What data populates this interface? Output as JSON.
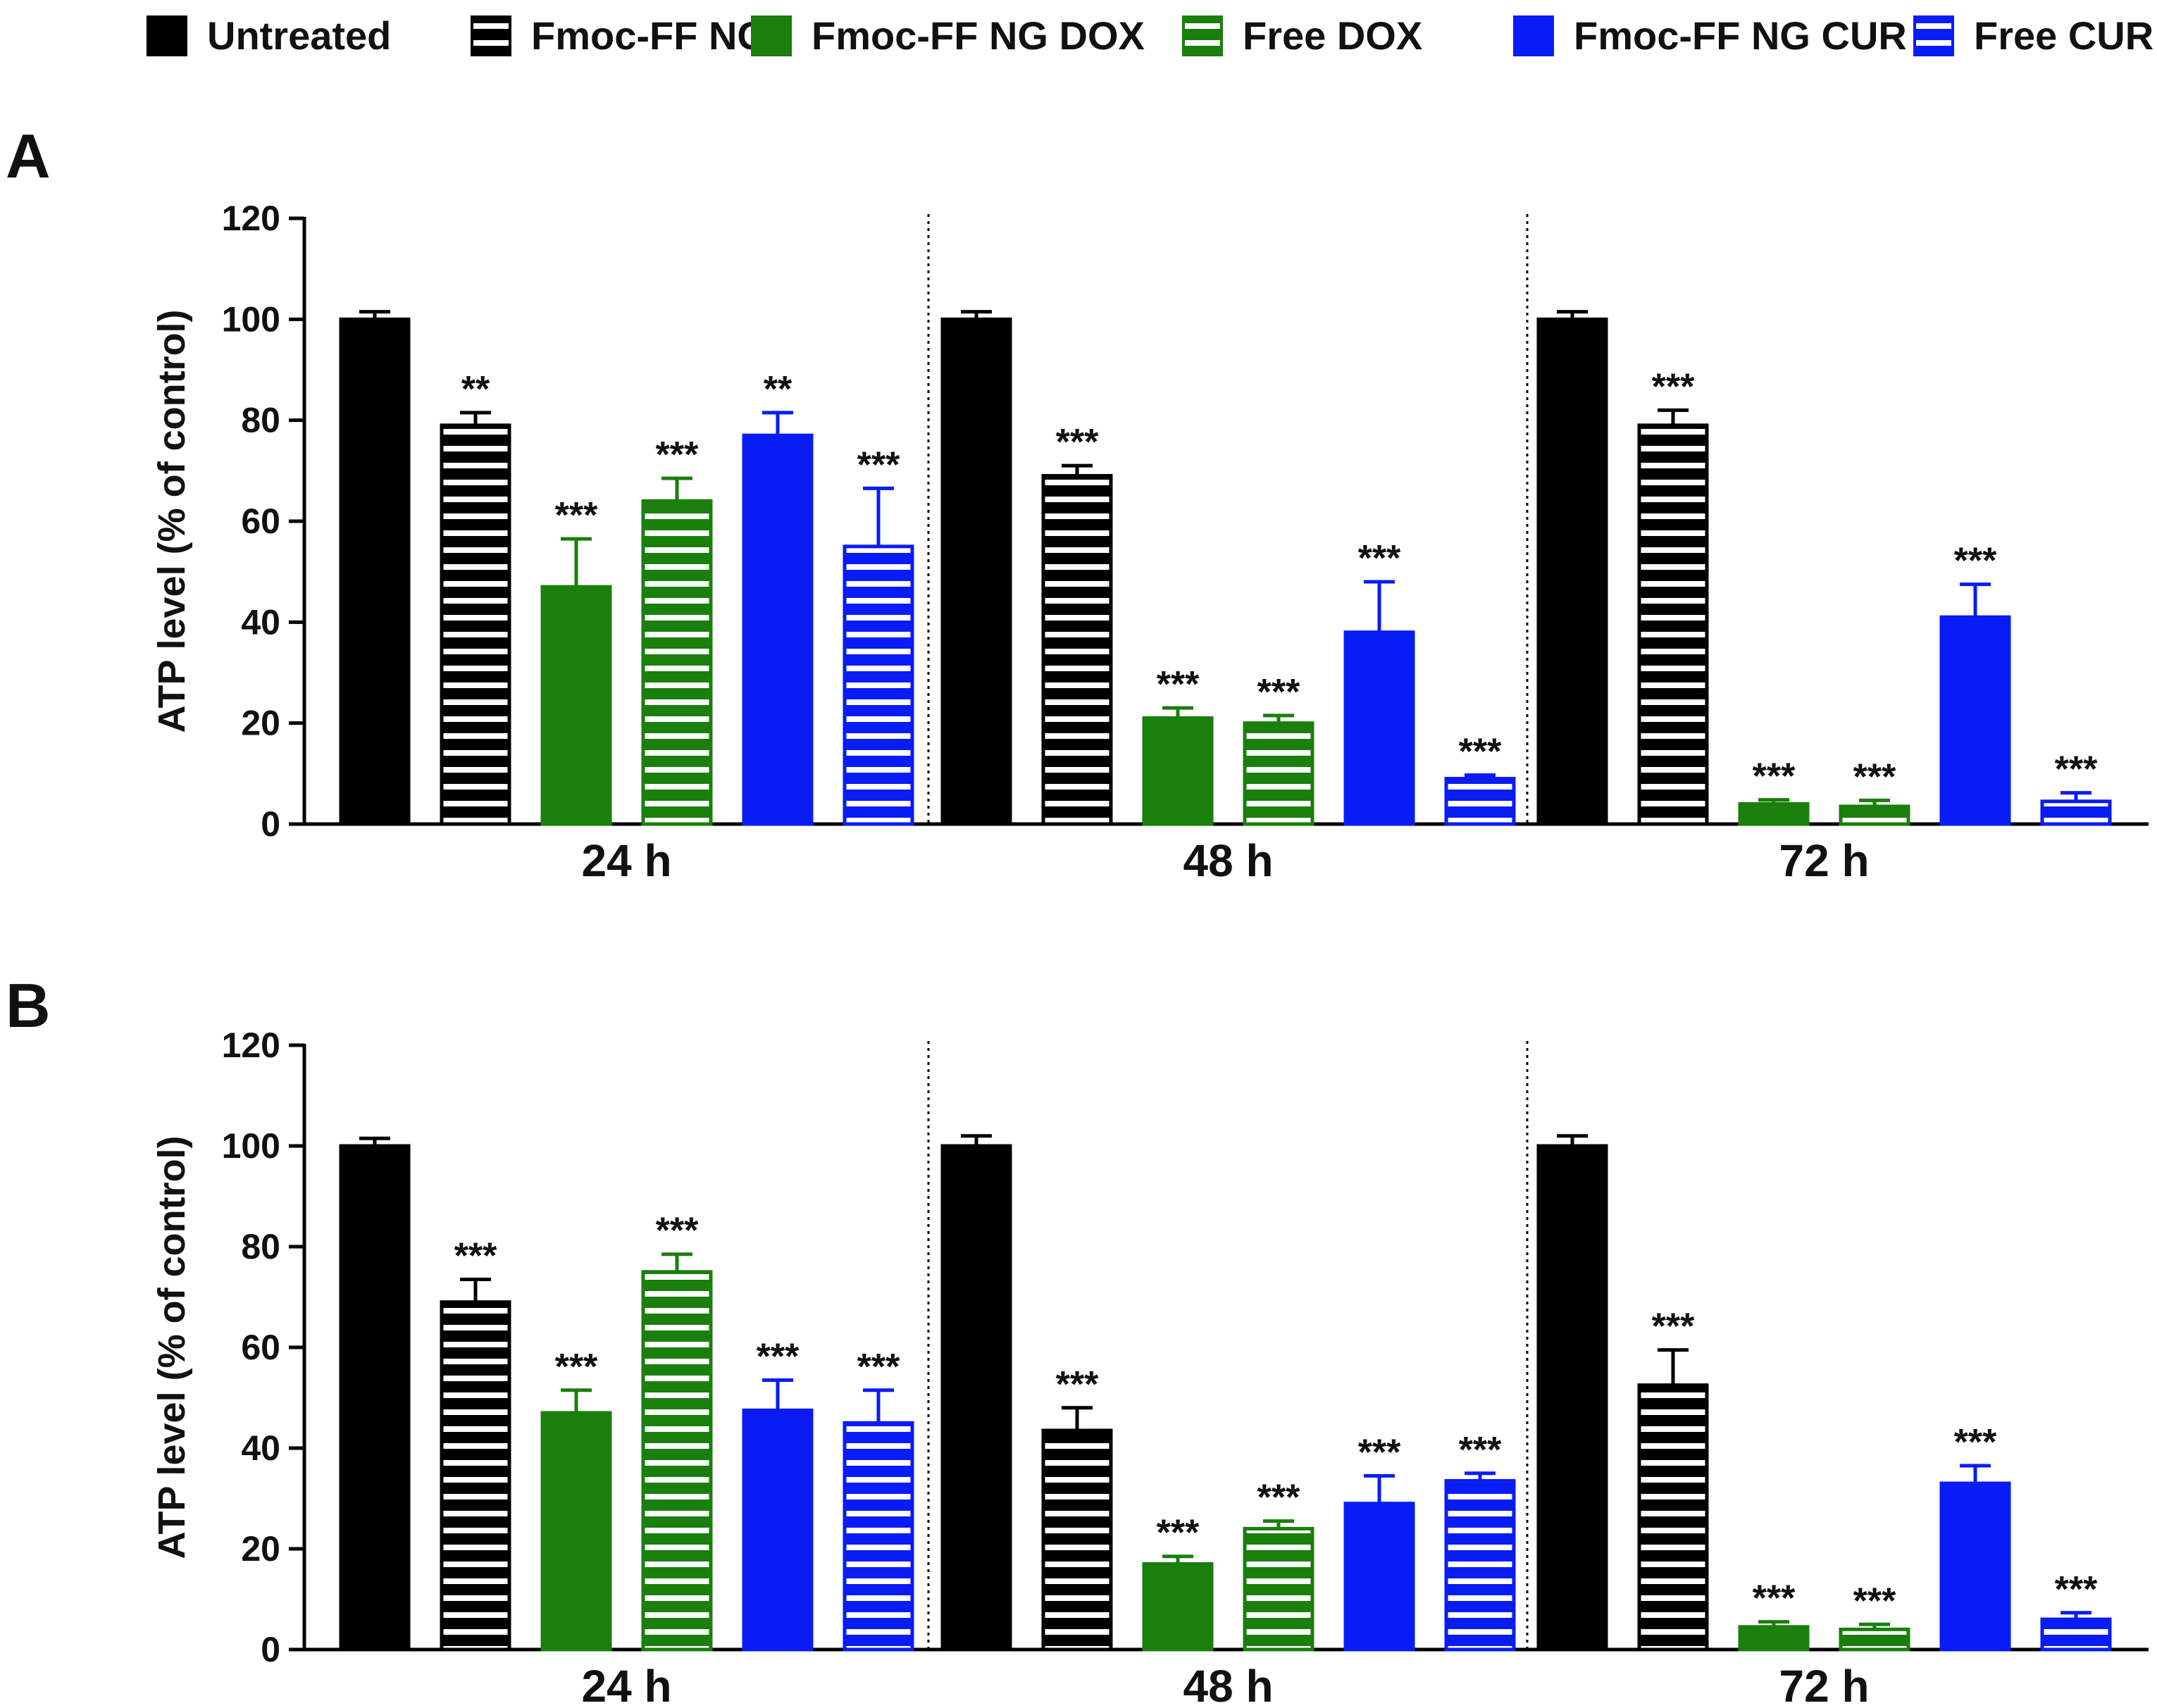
{
  "legend": [
    {
      "key": "untreated",
      "label": "Untreated",
      "color": "#000000",
      "pattern": "solid"
    },
    {
      "key": "ng",
      "label": "Fmoc-FF NG",
      "color": "#000000",
      "pattern": "striped"
    },
    {
      "key": "ng_dox",
      "label": "Fmoc-FF NG DOX",
      "color": "#1a7f0c",
      "pattern": "solid"
    },
    {
      "key": "free_dox",
      "label": "Free DOX",
      "color": "#1a7f0c",
      "pattern": "striped"
    },
    {
      "key": "ng_cur",
      "label": "Fmoc-FF NG CUR",
      "color": "#0a1cf5",
      "pattern": "solid"
    },
    {
      "key": "free_cur",
      "label": "Free CUR",
      "color": "#0a1cf5",
      "pattern": "striped"
    }
  ],
  "chart_data": [
    {
      "type": "bar",
      "panel": "A",
      "title": "",
      "xlabel": "",
      "ylabel": "ATP level (% of control)",
      "ylim": [
        0,
        120
      ],
      "yticks": [
        "0",
        "20",
        "40",
        "60",
        "80",
        "100",
        "120"
      ],
      "categories": [
        "24 h",
        "48 h",
        "72 h"
      ],
      "series": [
        {
          "name": "Untreated",
          "values": [
            100,
            100,
            100
          ],
          "errors": [
            1.5,
            1.5,
            1.5
          ],
          "significance": [
            "",
            "",
            ""
          ]
        },
        {
          "name": "Fmoc-FF NG",
          "values": [
            79,
            69,
            79
          ],
          "errors": [
            2.5,
            2,
            3
          ],
          "significance": [
            "**",
            "***",
            "***"
          ]
        },
        {
          "name": "Fmoc-FF NG DOX",
          "values": [
            47,
            21,
            4
          ],
          "errors": [
            9.5,
            2,
            0.8
          ],
          "significance": [
            "***",
            "***",
            "***"
          ]
        },
        {
          "name": "Free DOX",
          "values": [
            64,
            20,
            3.5
          ],
          "errors": [
            4.5,
            1.5,
            1.2
          ],
          "significance": [
            "***",
            "***",
            "***"
          ]
        },
        {
          "name": "Fmoc-FF NG CUR",
          "values": [
            77,
            38,
            41
          ],
          "errors": [
            4.5,
            10,
            6.5
          ],
          "significance": [
            "**",
            "***",
            "***"
          ]
        },
        {
          "name": "Free CUR",
          "values": [
            55,
            9,
            4.5
          ],
          "errors": [
            11.5,
            0.7,
            1.7
          ],
          "significance": [
            "***",
            "***",
            "***"
          ]
        }
      ]
    },
    {
      "type": "bar",
      "panel": "B",
      "title": "",
      "xlabel": "",
      "ylabel": "ATP level (% of control)",
      "ylim": [
        0,
        120
      ],
      "yticks": [
        "0",
        "20",
        "40",
        "60",
        "80",
        "100",
        "120"
      ],
      "categories": [
        "24 h",
        "48 h",
        "72 h"
      ],
      "series": [
        {
          "name": "Untreated",
          "values": [
            100,
            100,
            100
          ],
          "errors": [
            1.5,
            2,
            2
          ],
          "significance": [
            "",
            "",
            ""
          ]
        },
        {
          "name": "Fmoc-FF NG",
          "values": [
            69,
            43.5,
            52.5
          ],
          "errors": [
            4.5,
            4.5,
            7
          ],
          "significance": [
            "***",
            "***",
            "***"
          ]
        },
        {
          "name": "Fmoc-FF NG DOX",
          "values": [
            47,
            17,
            4.5
          ],
          "errors": [
            4.5,
            1.5,
            1
          ],
          "significance": [
            "***",
            "***",
            "***"
          ]
        },
        {
          "name": "Free DOX",
          "values": [
            75,
            24,
            4
          ],
          "errors": [
            3.5,
            1.5,
            1
          ],
          "significance": [
            "***",
            "***",
            "***"
          ]
        },
        {
          "name": "Fmoc-FF NG CUR",
          "values": [
            47.5,
            29,
            33
          ],
          "errors": [
            6,
            5.5,
            3.5
          ],
          "significance": [
            "***",
            "***",
            "***"
          ]
        },
        {
          "name": "Free CUR",
          "values": [
            45,
            33.5,
            6
          ],
          "errors": [
            6.5,
            1.5,
            1.3
          ],
          "significance": [
            "***",
            "***",
            "***"
          ]
        }
      ]
    }
  ]
}
